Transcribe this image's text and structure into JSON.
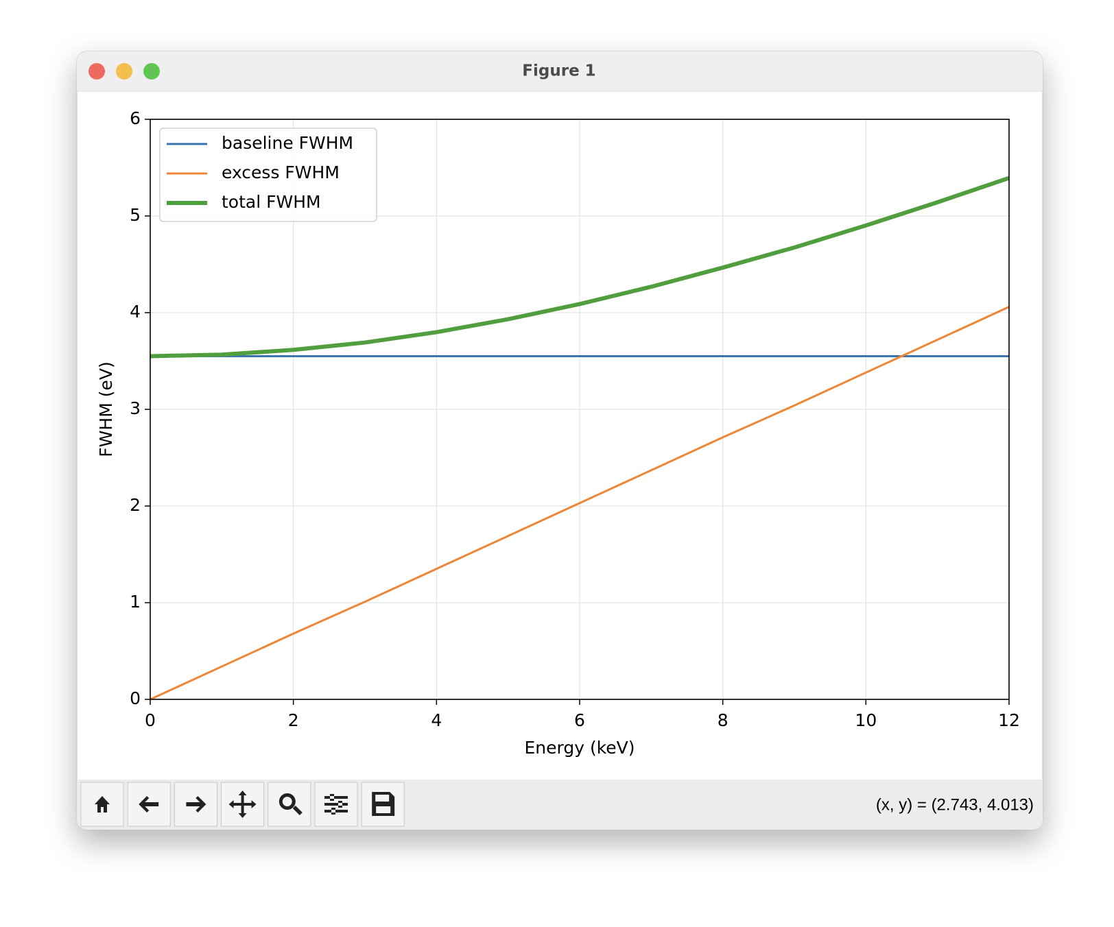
{
  "window": {
    "title": "Figure 1"
  },
  "chart_data": {
    "type": "line",
    "xlabel": "Energy (keV)",
    "ylabel": "FWHM (eV)",
    "x": [
      0,
      1,
      2,
      3,
      4,
      5,
      6,
      7,
      8,
      9,
      10,
      11,
      12
    ],
    "series": [
      {
        "name": "baseline FWHM",
        "color": "#3b75af",
        "width": 3,
        "values": [
          3.55,
          3.55,
          3.55,
          3.55,
          3.55,
          3.55,
          3.55,
          3.55,
          3.55,
          3.55,
          3.55,
          3.55,
          3.55
        ]
      },
      {
        "name": "excess FWHM",
        "color": "#ef8636",
        "width": 3,
        "values": [
          0,
          0.34,
          0.68,
          1.01,
          1.35,
          1.69,
          2.03,
          2.37,
          2.71,
          3.04,
          3.38,
          3.72,
          4.06
        ]
      },
      {
        "name": "total FWHM",
        "color": "#519e3e",
        "width": 6,
        "values": [
          3.55,
          3.566,
          3.615,
          3.691,
          3.798,
          3.932,
          4.089,
          4.268,
          4.466,
          4.674,
          4.902,
          5.142,
          5.393
        ]
      }
    ],
    "xlim": [
      0,
      12
    ],
    "xticks": [
      0,
      2,
      4,
      6,
      8,
      10,
      12
    ],
    "ylim": [
      0,
      6
    ],
    "yticks": [
      0,
      1,
      2,
      3,
      4,
      5,
      6
    ],
    "grid": true,
    "legend": "upper left"
  },
  "toolbar": {
    "status": "(x, y) = (2.743, 4.013)"
  }
}
